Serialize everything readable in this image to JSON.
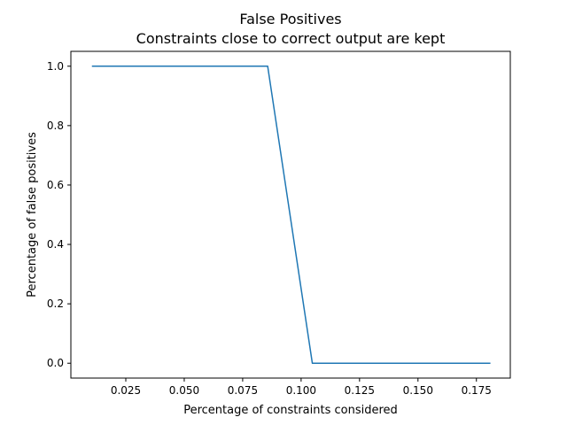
{
  "chart_data": {
    "type": "line",
    "title": "False Positives",
    "subtitle": "Constraints close to correct output are kept",
    "xlabel": "Percentage of constraints considered",
    "ylabel": "Percentage of false positives",
    "xlim": [
      0.0015,
      0.1895
    ],
    "ylim": [
      -0.05,
      1.05
    ],
    "xticks": [
      0.025,
      0.05,
      0.075,
      0.1,
      0.125,
      0.15,
      0.175
    ],
    "xtick_labels": [
      "0.025",
      "0.050",
      "0.075",
      "0.100",
      "0.125",
      "0.150",
      "0.175"
    ],
    "yticks": [
      0.0,
      0.2,
      0.4,
      0.6,
      0.8,
      1.0
    ],
    "ytick_labels": [
      "0.0",
      "0.2",
      "0.4",
      "0.6",
      "0.8",
      "1.0"
    ],
    "grid": false,
    "line_color": "#1f77b4",
    "series": [
      {
        "x": [
          0.0105,
          0.0857,
          0.1048,
          0.181
        ],
        "y": [
          1.0,
          1.0,
          0.0,
          0.0
        ]
      }
    ]
  }
}
